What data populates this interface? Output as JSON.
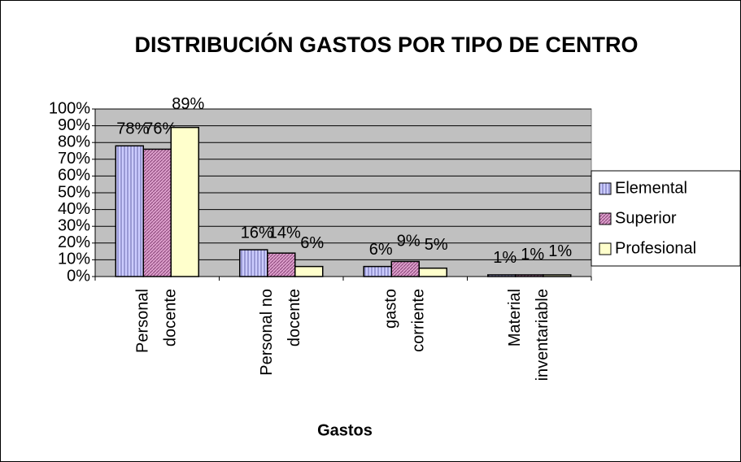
{
  "chart_data": {
    "type": "bar",
    "title": "DISTRIBUCIÓN GASTOS POR TIPO DE CENTRO",
    "x_label": "Gastos",
    "categories": [
      "Personal docente",
      "Personal no docente",
      "gasto corriente",
      "Material inventariable"
    ],
    "series": [
      {
        "name": "Elemental",
        "color": "#ccccff",
        "values": [
          78,
          16,
          6,
          1
        ],
        "value_labels": [
          "78%",
          "16%",
          "6%",
          "1%"
        ]
      },
      {
        "name": "Superior",
        "color": "#cc88bb",
        "values": [
          76,
          14,
          9,
          1
        ],
        "value_labels": [
          "76%",
          "14%",
          "9%",
          "1%"
        ]
      },
      {
        "name": "Profesional",
        "color": "#ffffcc",
        "values": [
          89,
          6,
          5,
          1
        ],
        "value_labels": [
          "89%",
          "6%",
          "5%",
          "1%"
        ]
      }
    ],
    "ylim": [
      0,
      100
    ],
    "yticks": [
      {
        "value": 0,
        "label": "0%"
      },
      {
        "value": 10,
        "label": "10%"
      },
      {
        "value": 20,
        "label": "20%"
      },
      {
        "value": 30,
        "label": "30%"
      },
      {
        "value": 40,
        "label": "40%"
      },
      {
        "value": 50,
        "label": "50%"
      },
      {
        "value": 60,
        "label": "60%"
      },
      {
        "value": 70,
        "label": "70%"
      },
      {
        "value": 80,
        "label": "80%"
      },
      {
        "value": 90,
        "label": "90%"
      },
      {
        "value": 100,
        "label": "100%"
      }
    ],
    "grid": true,
    "legend": "right"
  }
}
